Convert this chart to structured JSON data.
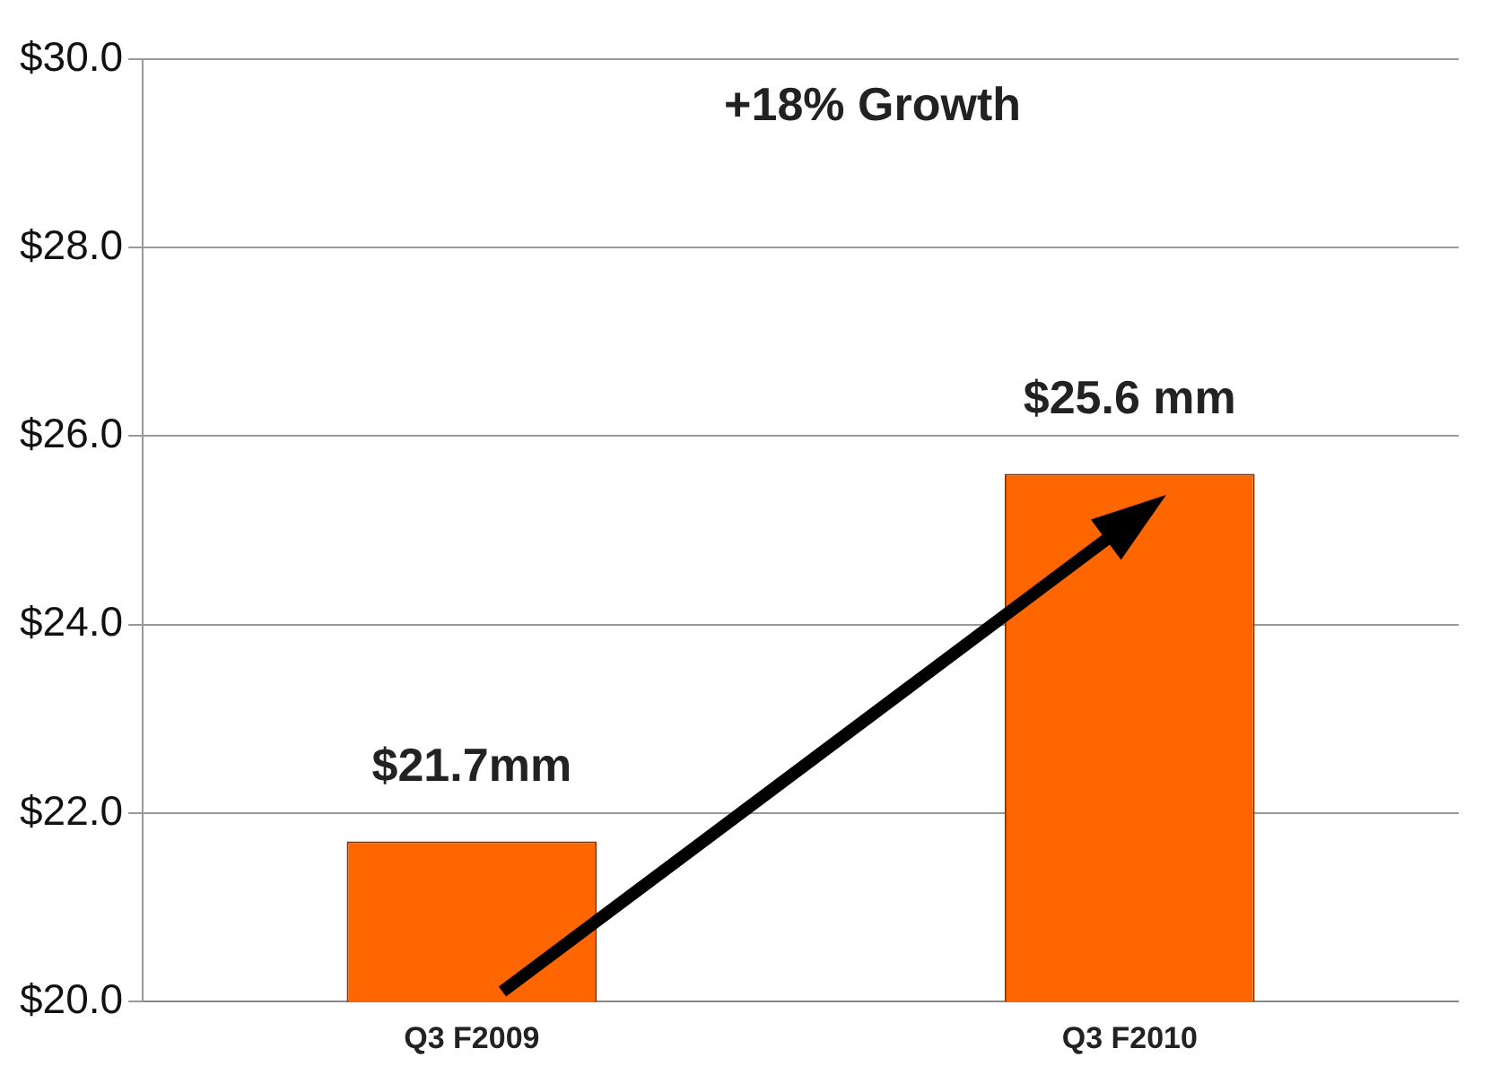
{
  "chart_data": {
    "type": "bar",
    "categories": [
      "Q3 F2009",
      "Q3 F2010"
    ],
    "values": [
      21.7,
      25.6
    ],
    "color": "#ff6600",
    "value_labels": [
      "$21.7mm",
      "$25.6 mm"
    ],
    "annotations": [
      "+18% Growth"
    ],
    "ylim": [
      20,
      30
    ],
    "yticks": [
      {
        "value": 20,
        "label": "$20.0"
      },
      {
        "value": 22,
        "label": "$22.0"
      },
      {
        "value": 24,
        "label": "$24.0"
      },
      {
        "value": 26,
        "label": "$26.0"
      },
      {
        "value": 28,
        "label": "$28.0"
      },
      {
        "value": 30,
        "label": "$30.0"
      }
    ],
    "grid": "y",
    "legend": false
  }
}
